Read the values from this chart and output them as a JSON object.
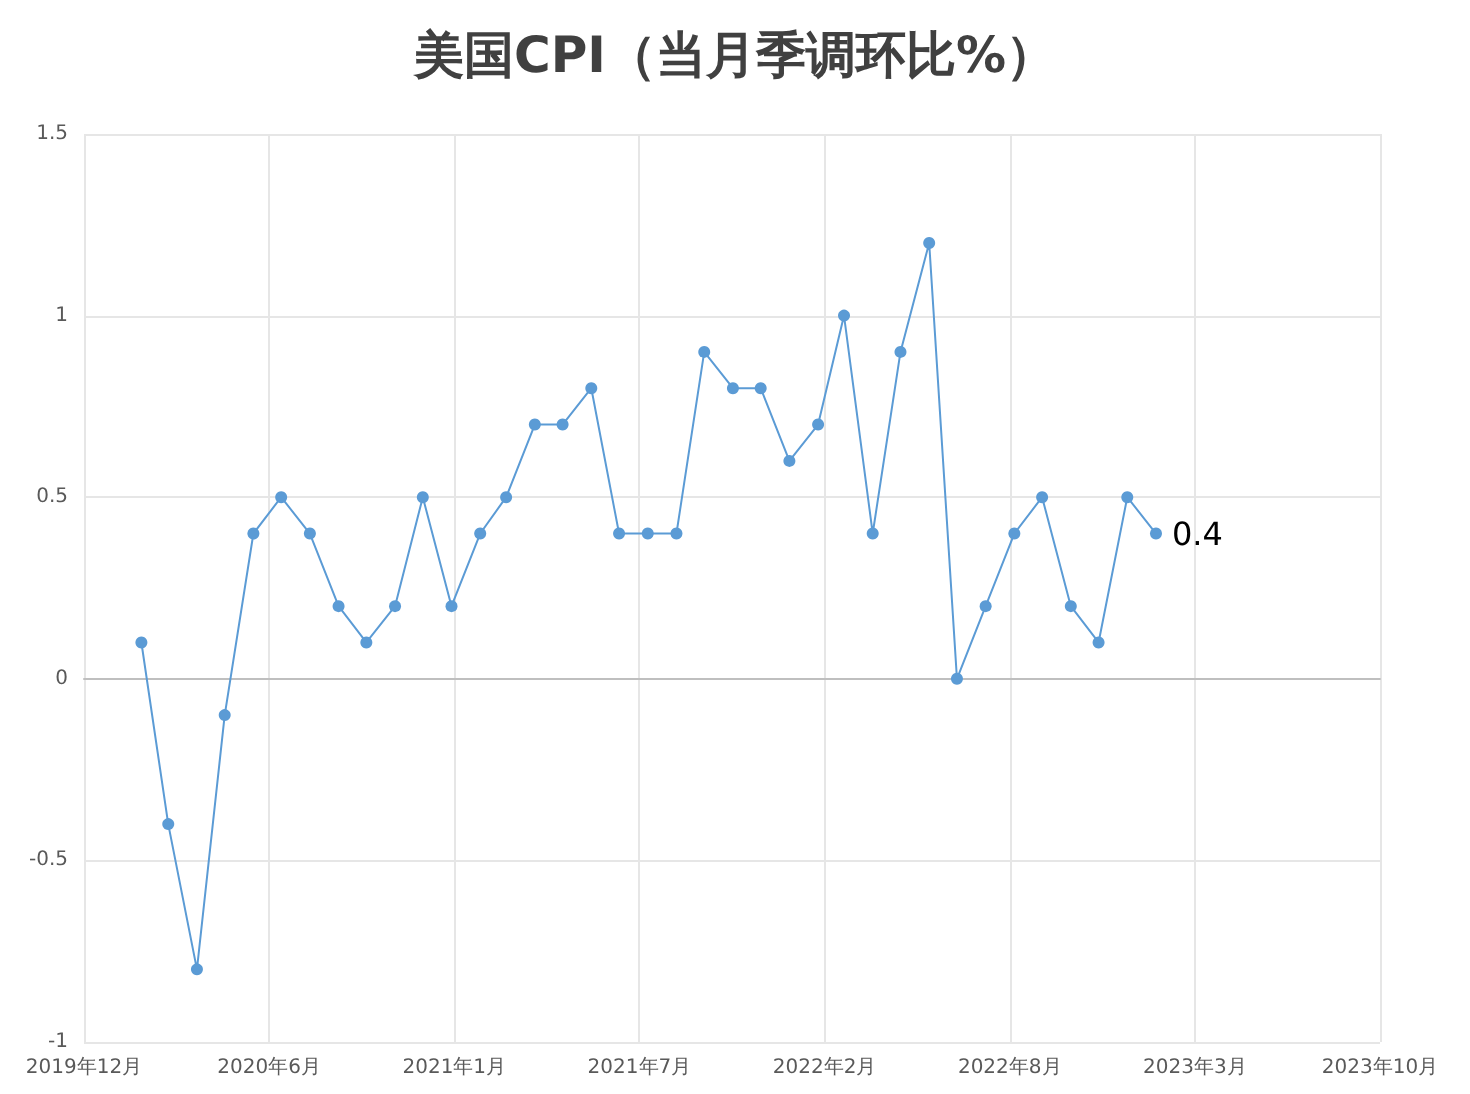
{
  "chart_data": {
    "type": "line",
    "title": "美国CPI（当月季调环比%）",
    "x": [
      "2020-02",
      "2020-03",
      "2020-04",
      "2020-05",
      "2020-06",
      "2020-07",
      "2020-08",
      "2020-09",
      "2020-10",
      "2020-11",
      "2020-12",
      "2021-01",
      "2021-02",
      "2021-03",
      "2021-04",
      "2021-05",
      "2021-06",
      "2021-07",
      "2021-08",
      "2021-09",
      "2021-10",
      "2021-11",
      "2021-12",
      "2022-01",
      "2022-02",
      "2022-03",
      "2022-04",
      "2022-05",
      "2022-06",
      "2022-07",
      "2022-08",
      "2022-09",
      "2022-10",
      "2022-11",
      "2022-12",
      "2023-01",
      "2023-02"
    ],
    "series": [
      {
        "color": "#5b9bd5",
        "values": [
          0.1,
          -0.4,
          -0.8,
          -0.1,
          0.4,
          0.5,
          0.4,
          0.2,
          0.1,
          0.2,
          0.5,
          0.2,
          0.4,
          0.5,
          0.7,
          0.7,
          0.8,
          0.4,
          0.4,
          0.4,
          0.9,
          0.8,
          0.8,
          0.6,
          0.7,
          1.0,
          0.4,
          0.9,
          1.2,
          0.0,
          0.2,
          0.4,
          0.5,
          0.2,
          0.1,
          0.5,
          0.4
        ],
        "value_labels": [
          null,
          null,
          null,
          null,
          null,
          null,
          null,
          null,
          null,
          null,
          null,
          null,
          null,
          null,
          null,
          null,
          null,
          null,
          null,
          null,
          null,
          null,
          null,
          null,
          null,
          null,
          null,
          null,
          null,
          null,
          null,
          null,
          null,
          null,
          null,
          null,
          "0.4"
        ]
      }
    ],
    "xlim": [
      "2019-12-01",
      "2023-10-01"
    ],
    "xticks": [
      {
        "value": "2019-12-01",
        "label": "2019年12月"
      },
      {
        "value": "2020-06-18",
        "label": "2020年6月"
      },
      {
        "value": "2021-01-04",
        "label": "2021年1月"
      },
      {
        "value": "2021-07-23",
        "label": "2021年7月"
      },
      {
        "value": "2022-02-08",
        "label": "2022年2月"
      },
      {
        "value": "2022-08-27",
        "label": "2022年8月"
      },
      {
        "value": "2023-03-15",
        "label": "2023年3月"
      },
      {
        "value": "2023-10-01",
        "label": "2023年10月"
      }
    ],
    "ylim": [
      -1,
      1.5
    ],
    "yticks": [
      -1,
      -0.5,
      0,
      0.5,
      1,
      1.5
    ],
    "grid": true,
    "marker": "circle",
    "line_style": "solid"
  }
}
